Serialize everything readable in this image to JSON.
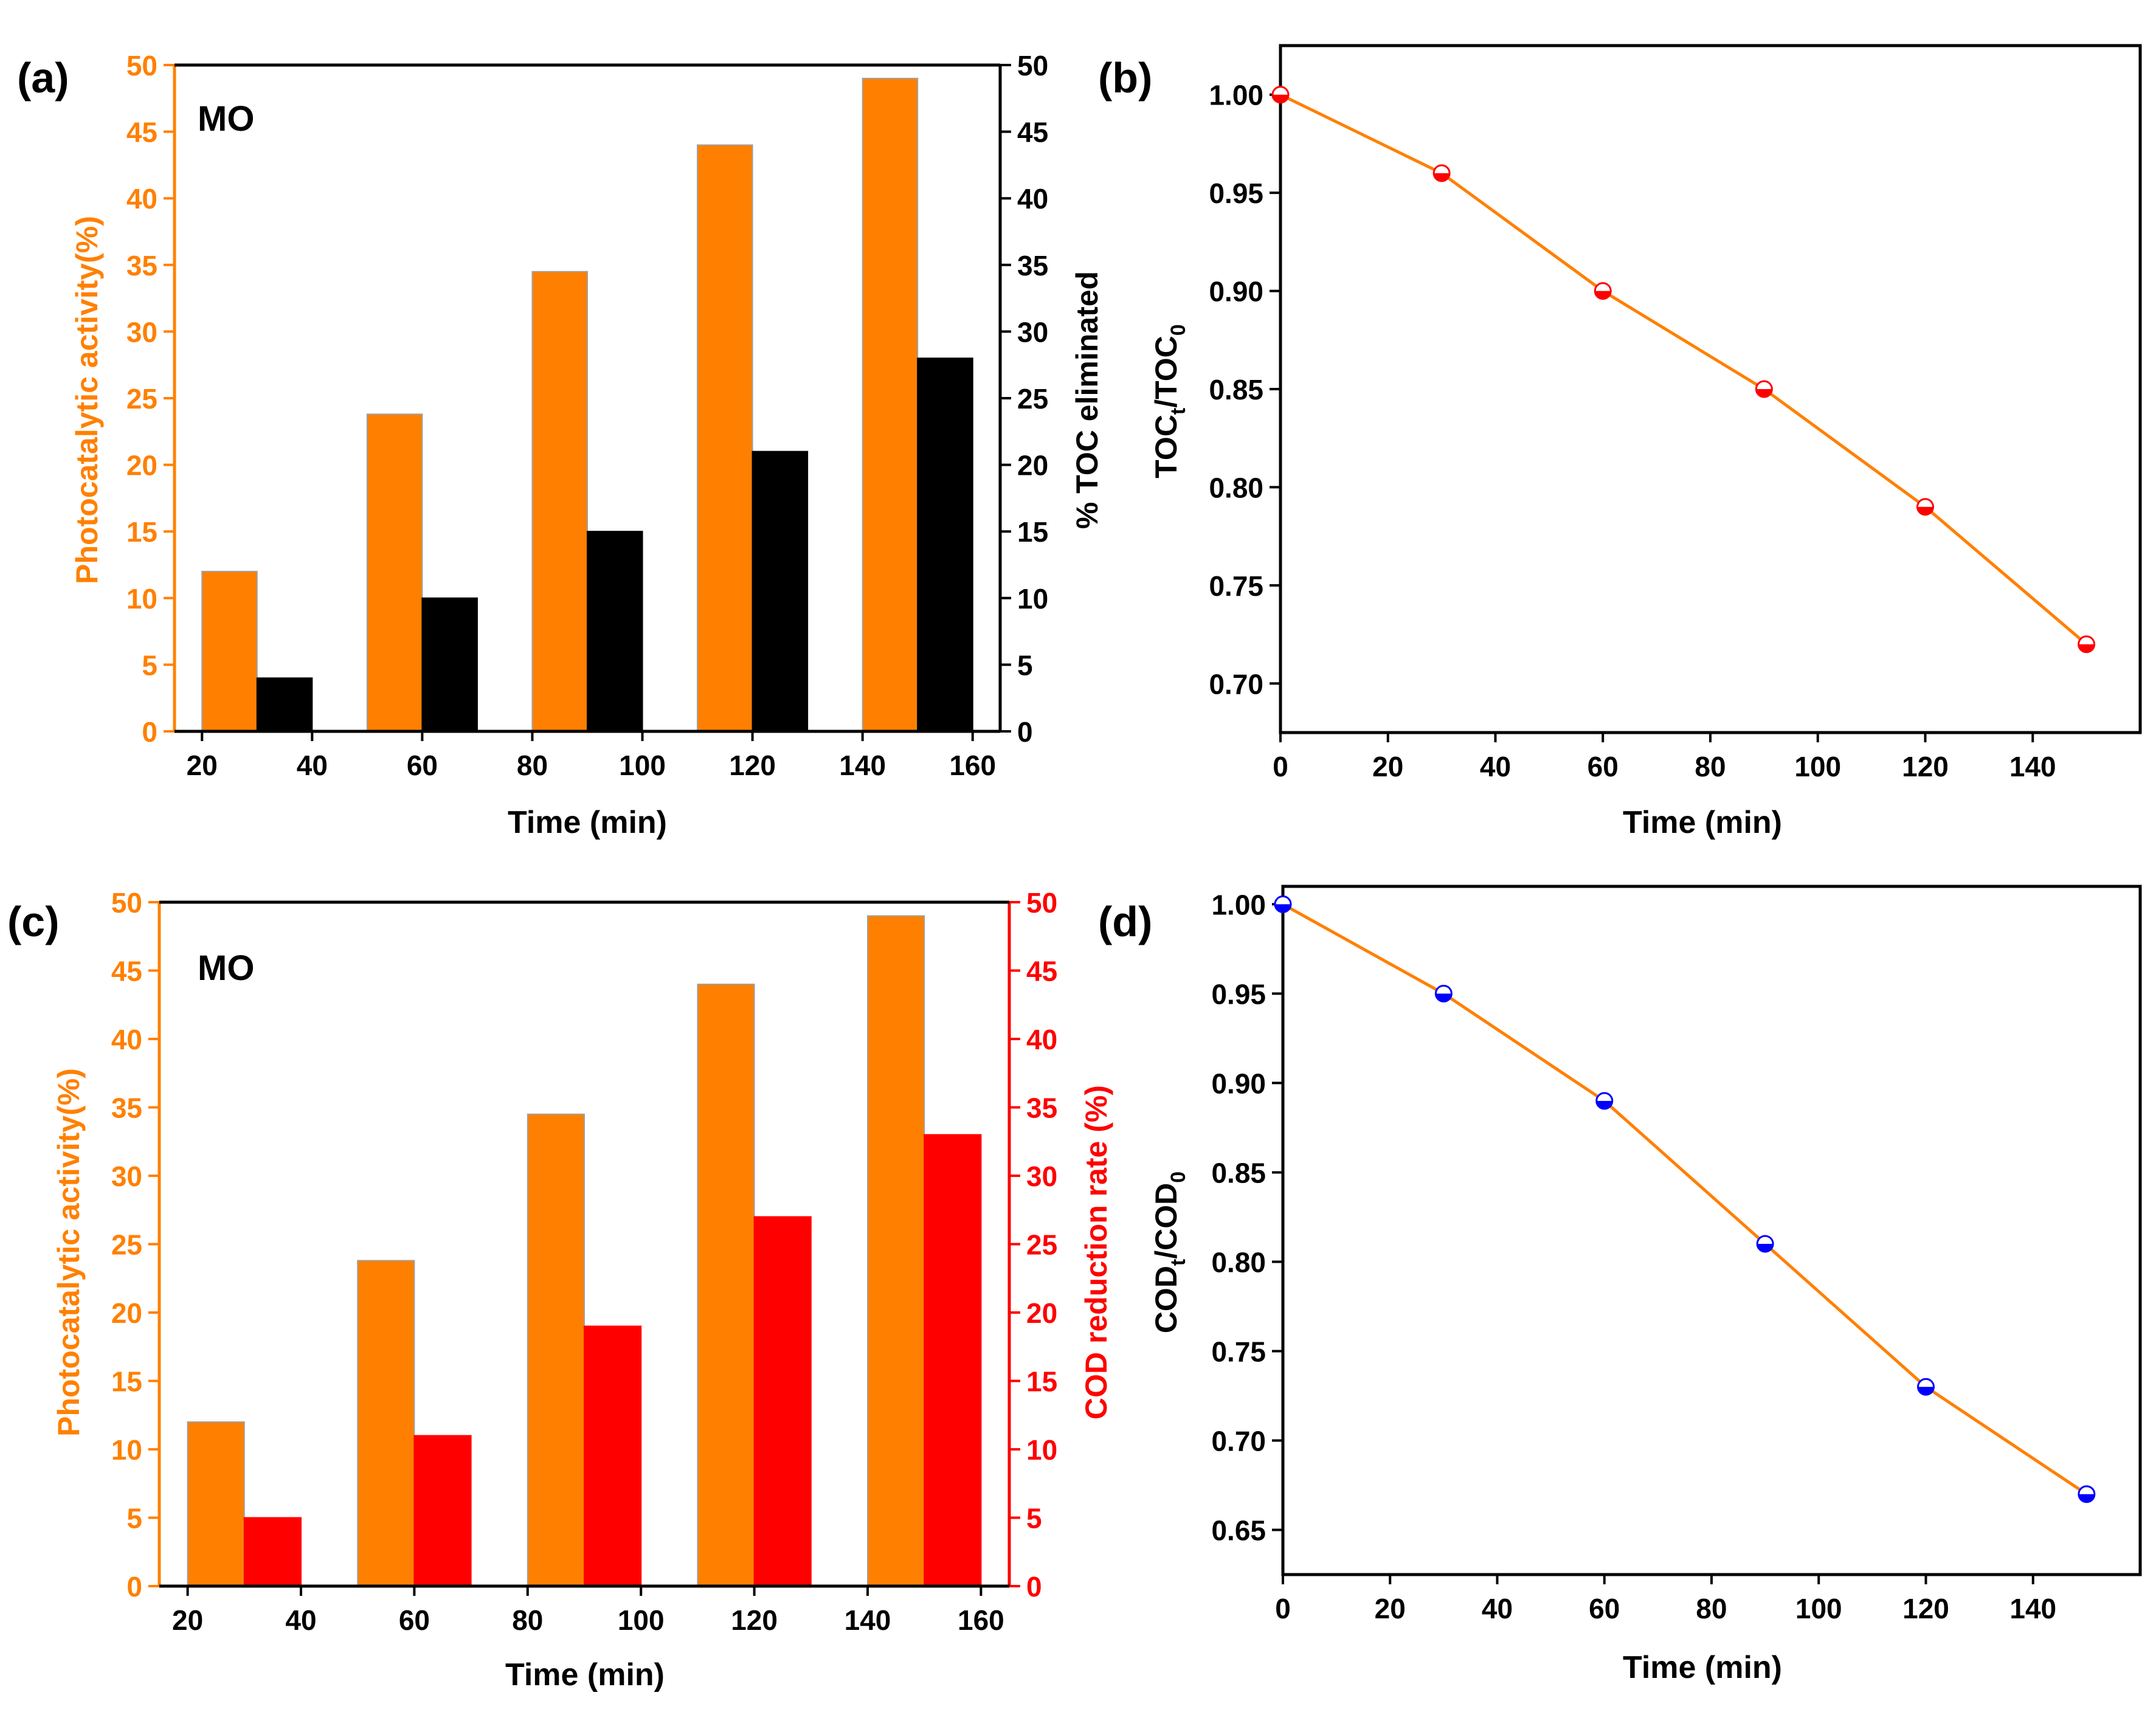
{
  "colors": {
    "orange": "#FF8000",
    "black": "#000000",
    "red": "#FF0000",
    "blue": "#0000FF",
    "panel_b_marker": "#FF0000"
  },
  "chart_data": [
    {
      "panel": "(a)",
      "type": "bar",
      "annotation": "MO",
      "xlabel": "Time (min)",
      "xticks": [
        "20",
        "40",
        "60",
        "80",
        "100",
        "120",
        "140",
        "160"
      ],
      "xlim": [
        15,
        165
      ],
      "ylabel_left": "Photocatalytic activity(%)",
      "ylabel_right": "% TOC eliminated",
      "ylim": [
        0,
        50
      ],
      "yticks": [
        0,
        5,
        10,
        15,
        20,
        25,
        30,
        35,
        40,
        45,
        50
      ],
      "series": [
        {
          "name": "Photocatalytic activity",
          "axis": "left",
          "x": [
            25,
            55,
            85,
            115,
            145
          ],
          "values": [
            12,
            23.8,
            34.5,
            44,
            49
          ]
        },
        {
          "name": "% TOC eliminated",
          "axis": "right",
          "x": [
            35,
            65,
            95,
            125,
            155
          ],
          "values": [
            4,
            10,
            15,
            21,
            28
          ]
        }
      ]
    },
    {
      "panel": "(b)",
      "type": "line",
      "xlabel": "Time (min)",
      "ylabel_main": "TOC",
      "ylabel_sub1": "t",
      "ylabel_slash": "/TOC",
      "ylabel_sub2": "0",
      "xticks": [
        "0",
        "20",
        "40",
        "60",
        "80",
        "100",
        "120",
        "140"
      ],
      "xlim": [
        0,
        160
      ],
      "ylim": [
        0.675,
        1.025
      ],
      "yticks": [
        "0.70",
        "0.75",
        "0.80",
        "0.85",
        "0.90",
        "0.95",
        "1.00"
      ],
      "series": [
        {
          "name": "TOCt/TOC0",
          "x": [
            0,
            30,
            60,
            90,
            120,
            150
          ],
          "values": [
            1.0,
            0.96,
            0.9,
            0.85,
            0.79,
            0.72
          ]
        }
      ]
    },
    {
      "panel": "(c)",
      "type": "bar",
      "annotation": "MO",
      "xlabel": "Time (min)",
      "xticks": [
        "20",
        "40",
        "60",
        "80",
        "100",
        "120",
        "140",
        "160"
      ],
      "xlim": [
        15,
        165
      ],
      "ylabel_left": "Photocatalytic activity(%)",
      "ylabel_right": "COD reduction rate (%)",
      "ylim": [
        0,
        50
      ],
      "yticks": [
        0,
        5,
        10,
        15,
        20,
        25,
        30,
        35,
        40,
        45,
        50
      ],
      "series": [
        {
          "name": "Photocatalytic activity",
          "axis": "left",
          "x": [
            25,
            55,
            85,
            115,
            145
          ],
          "values": [
            12,
            23.8,
            34.5,
            44,
            49
          ]
        },
        {
          "name": "COD reduction rate",
          "axis": "right",
          "x": [
            35,
            65,
            95,
            125,
            155
          ],
          "values": [
            5,
            11,
            19,
            27,
            33
          ]
        }
      ]
    },
    {
      "panel": "(d)",
      "type": "line",
      "xlabel": "Time (min)",
      "ylabel_main": "COD",
      "ylabel_sub1": "t",
      "ylabel_slash": "/COD",
      "ylabel_sub2": "0",
      "xticks": [
        "0",
        "20",
        "40",
        "60",
        "80",
        "100",
        "120",
        "140"
      ],
      "xlim": [
        0,
        160
      ],
      "ylim": [
        0.625,
        1.01
      ],
      "yticks": [
        "0.65",
        "0.70",
        "0.75",
        "0.80",
        "0.85",
        "0.90",
        "0.95",
        "1.00"
      ],
      "series": [
        {
          "name": "CODt/COD0",
          "x": [
            0,
            30,
            60,
            90,
            120,
            150
          ],
          "values": [
            1.0,
            0.95,
            0.89,
            0.81,
            0.73,
            0.67
          ]
        }
      ]
    }
  ]
}
